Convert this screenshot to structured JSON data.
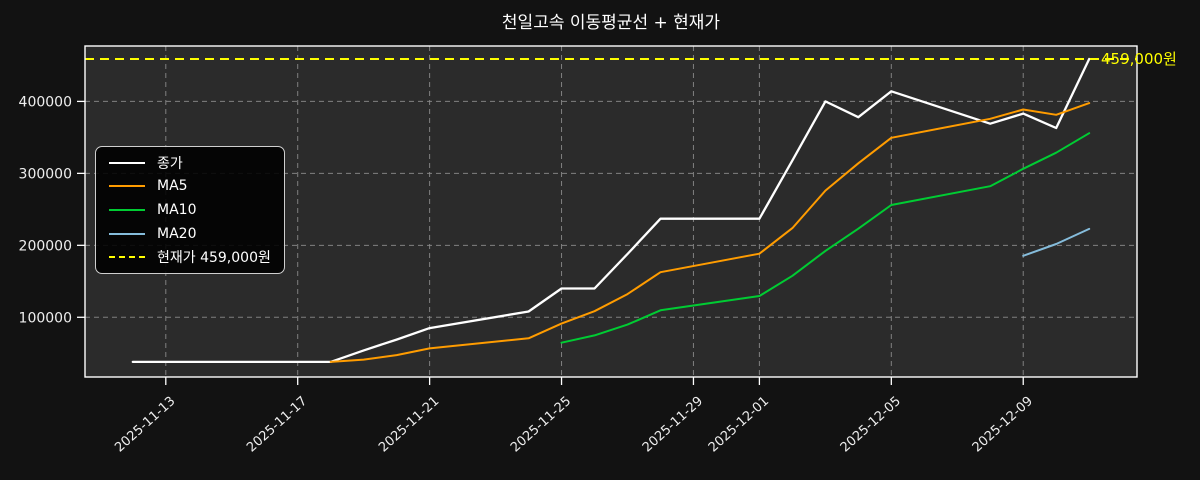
{
  "figure": {
    "title": "천일고속 이동평균선 + 현재가",
    "current_price_label": "459,000원",
    "background_color": "#121212",
    "plot_background_color": "#2b2b2b",
    "grid_color": "#8a8a8a",
    "spine_color": "#ffffff",
    "tick_label_color": "#eeeeee"
  },
  "legend": {
    "items": [
      {
        "key": "close",
        "label": "종가",
        "color": "#ffffff",
        "dashed": false
      },
      {
        "key": "ma5",
        "label": "MA5",
        "color": "#ff9c00",
        "dashed": false
      },
      {
        "key": "ma10",
        "label": "MA10",
        "color": "#00cc33",
        "dashed": false
      },
      {
        "key": "ma20",
        "label": "MA20",
        "color": "#85bcdb",
        "dashed": false
      },
      {
        "key": "current-price",
        "label": "현재가 459,000원",
        "color": "#ffff00",
        "dashed": true
      }
    ]
  },
  "chart_data": {
    "type": "line",
    "title": "천일고속 이동평균선 + 현재가",
    "x_dates": [
      "2025-11-12",
      "2025-11-13",
      "2025-11-14",
      "2025-11-17",
      "2025-11-18",
      "2025-11-19",
      "2025-11-20",
      "2025-11-21",
      "2025-11-24",
      "2025-11-25",
      "2025-11-26",
      "2025-11-27",
      "2025-11-28",
      "2025-12-01",
      "2025-12-02",
      "2025-12-03",
      "2025-12-04",
      "2025-12-05",
      "2025-12-08",
      "2025-12-09",
      "2025-12-10",
      "2025-12-11"
    ],
    "series": [
      {
        "key": "close",
        "name": "종가",
        "color": "#ffffff",
        "dashed": false,
        "width": 2.3,
        "values": [
          38000,
          38000,
          38000,
          38000,
          38000,
          54000,
          69000,
          85000,
          108000,
          140000,
          140000,
          188000,
          237000,
          237000,
          318000,
          400000,
          378000,
          414000,
          369000,
          383000,
          363000,
          459000
        ]
      },
      {
        "key": "ma5",
        "name": "MA5",
        "color": "#ff9c00",
        "dashed": false,
        "width": 2,
        "values": [
          null,
          null,
          null,
          null,
          38000,
          41200,
          47400,
          56800,
          70800,
          91200,
          108400,
          132200,
          162600,
          188400,
          224000,
          276000,
          314000,
          349400,
          375800,
          388800,
          381400,
          397600
        ]
      },
      {
        "key": "ma10",
        "name": "MA10",
        "color": "#00cc33",
        "dashed": false,
        "width": 2,
        "values": [
          null,
          null,
          null,
          null,
          null,
          null,
          null,
          null,
          null,
          64600,
          74800,
          89800,
          109700,
          129600,
          157600,
          192200,
          223100,
          256000,
          282100,
          306400,
          328700,
          355800
        ]
      },
      {
        "key": "ma20",
        "name": "MA20",
        "color": "#85bcdb",
        "dashed": false,
        "width": 2,
        "values": [
          null,
          null,
          null,
          null,
          null,
          null,
          null,
          null,
          null,
          null,
          null,
          null,
          null,
          null,
          null,
          null,
          null,
          null,
          null,
          185500,
          201800,
          222800
        ]
      }
    ],
    "current_price_line": {
      "label": "현재가 459,000원",
      "value": 459000,
      "color": "#ffff00",
      "dashed": true,
      "annotation": "459,000원"
    },
    "xtick_labels": [
      "2025-11-13",
      "2025-11-17",
      "2025-11-21",
      "2025-11-25",
      "2025-11-29",
      "2025-12-01",
      "2025-12-05",
      "2025-12-09"
    ],
    "ytick_values": [
      100000,
      200000,
      300000,
      400000
    ],
    "ylim": [
      17000,
      477000
    ],
    "grid": true,
    "legend_position": "upper left"
  }
}
